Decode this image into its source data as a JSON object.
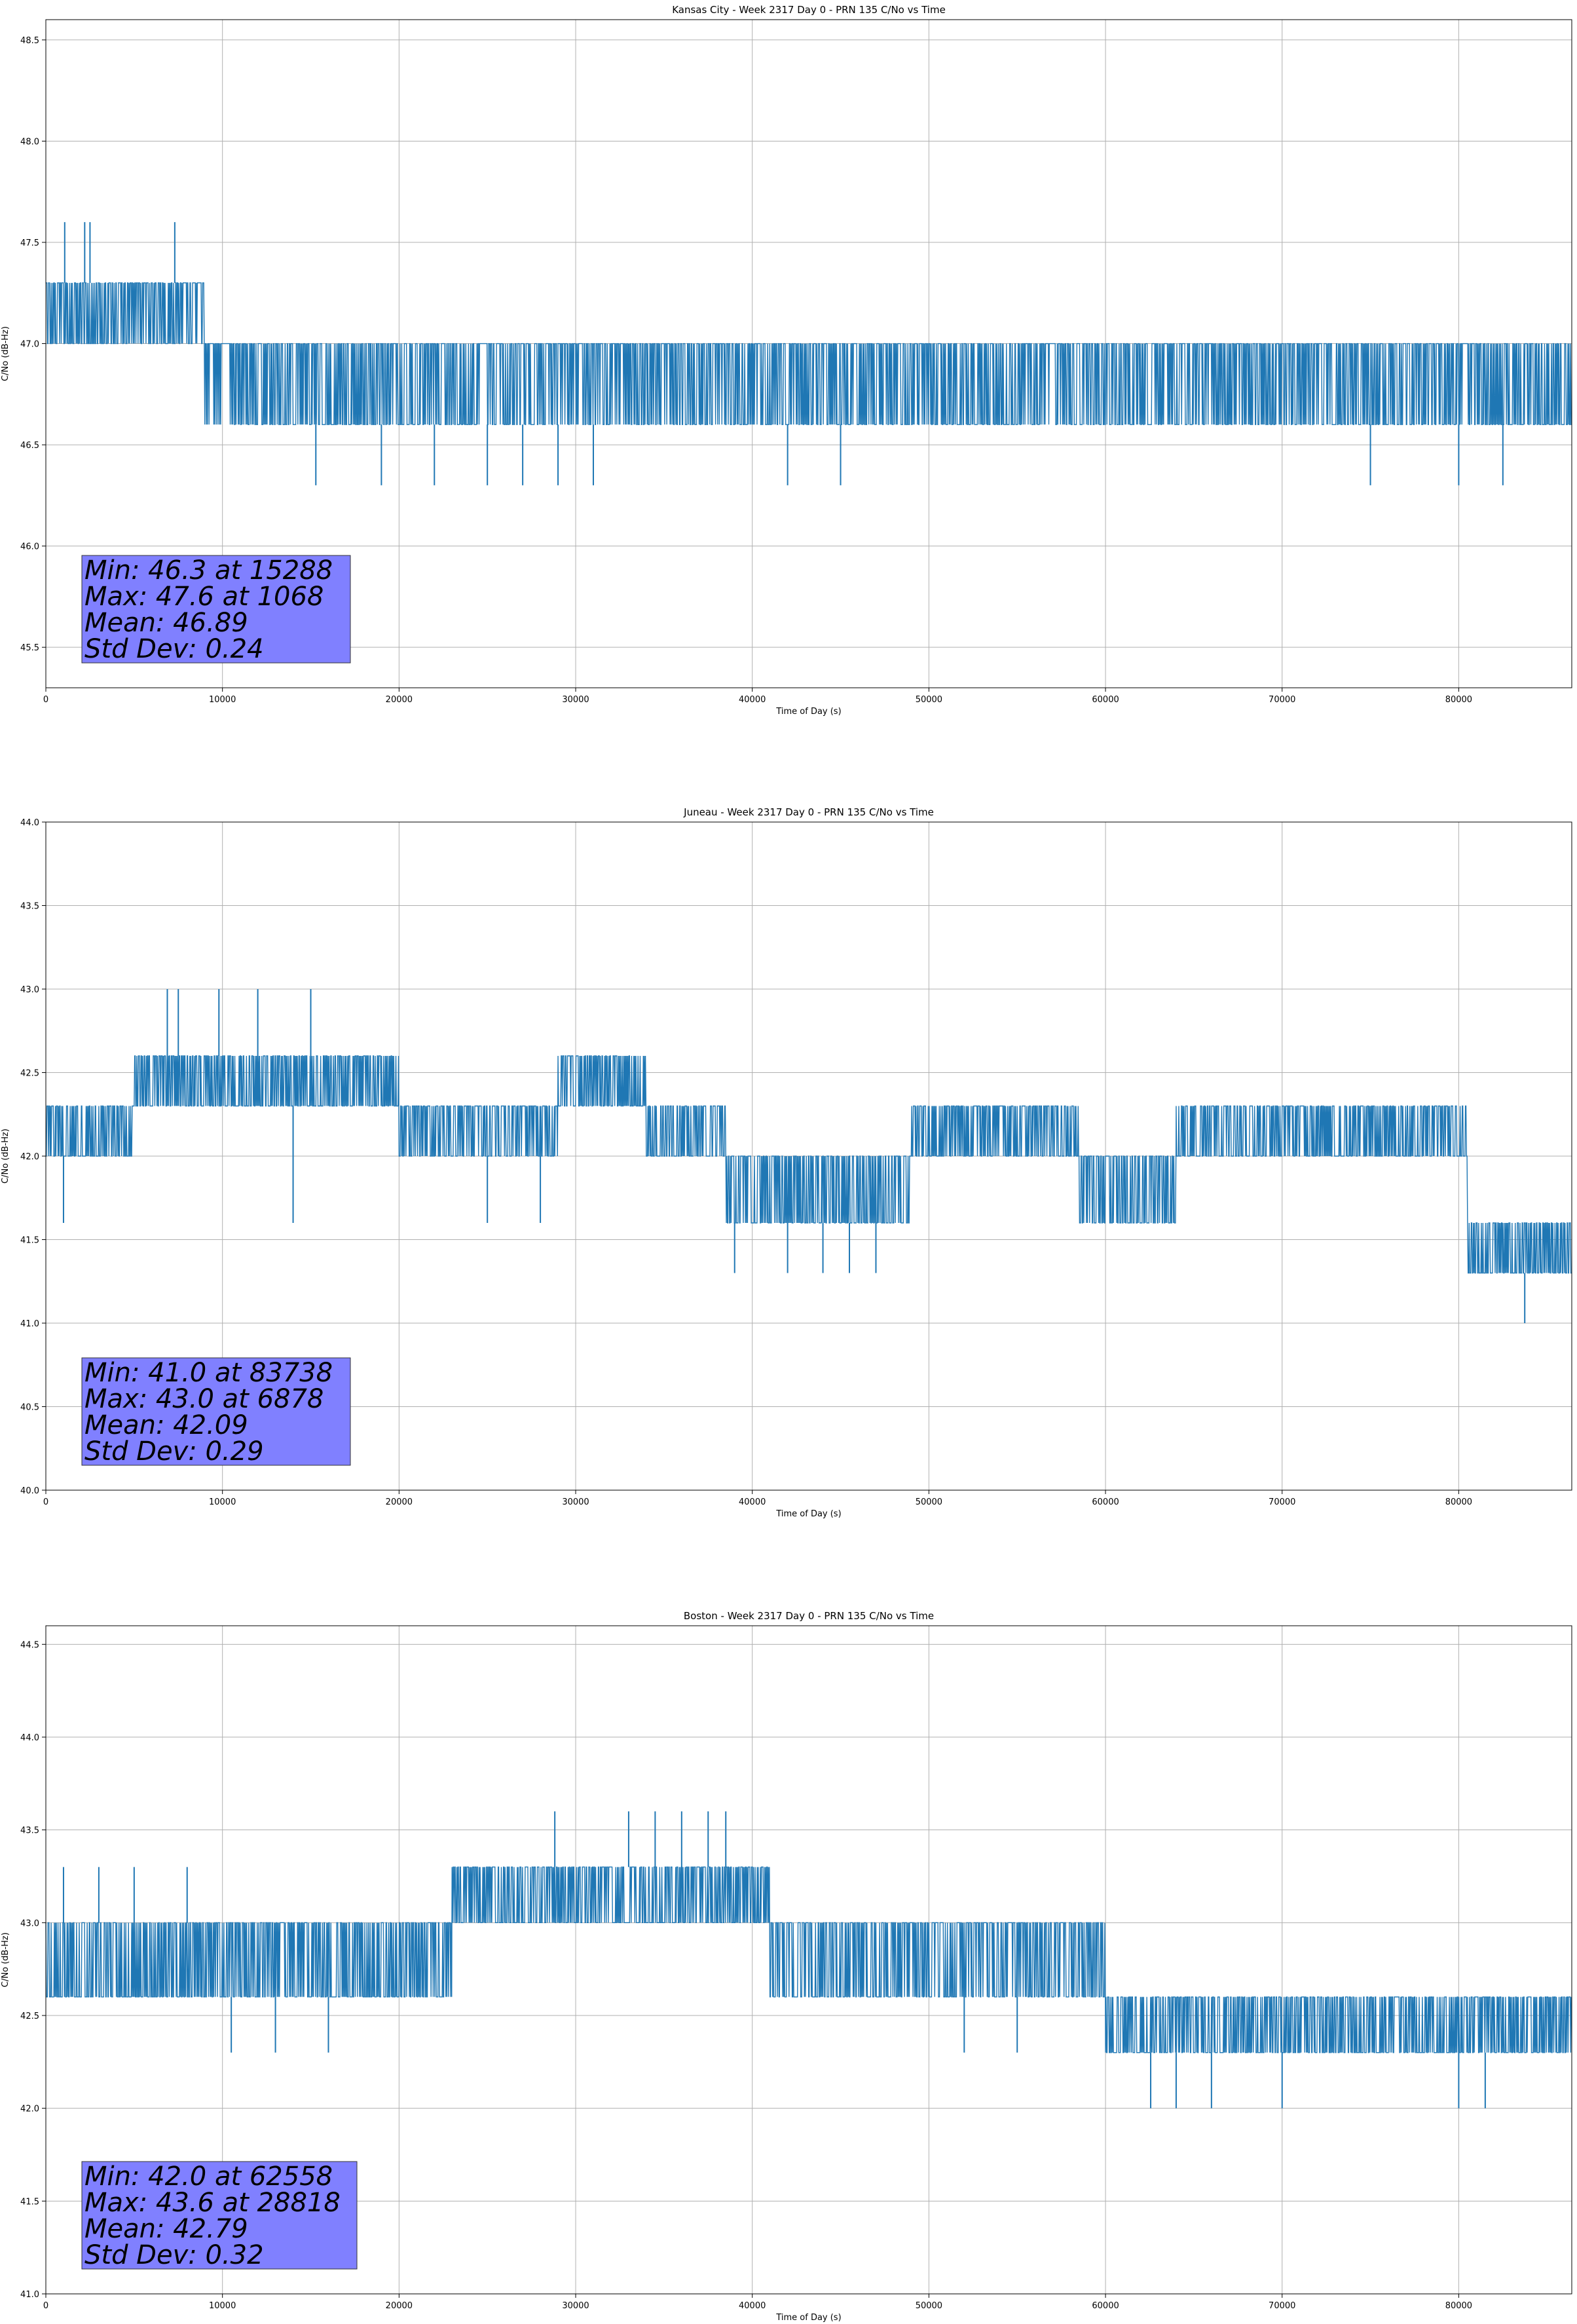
{
  "chart_data": [
    {
      "type": "line",
      "title": "Kansas City - Week 2317 Day 0 - PRN 135 C/No vs Time",
      "xlabel": "Time of Day (s)",
      "ylabel": "C/No (dB-Hz)",
      "xlim": [
        0,
        86400
      ],
      "ylim": [
        45.3,
        48.6
      ],
      "xticks": [
        0,
        10000,
        20000,
        30000,
        40000,
        50000,
        60000,
        70000,
        80000
      ],
      "xtick_labels": [
        "0",
        "10000",
        "20000",
        "30000",
        "40000",
        "50000",
        "60000",
        "70000",
        "80000"
      ],
      "yticks": [
        45.5,
        46.0,
        46.5,
        47.0,
        47.5,
        48.0,
        48.5
      ],
      "ytick_labels": [
        "45.5",
        "46.0",
        "46.5",
        "47.0",
        "47.5",
        "48.0",
        "48.5"
      ],
      "grid": true,
      "series_color": "#1f77b4",
      "quant_step": 0.3,
      "stats": [
        "Min: 46.3 at 15288",
        "Max: 47.6 at 1068",
        "Mean: 46.89",
        "Std Dev: 0.24"
      ],
      "segments": [
        {
          "from": 0,
          "to": 9000,
          "base": 47.0,
          "alt": 47.3,
          "p": 0.55
        },
        {
          "from": 9000,
          "to": 11000,
          "base": 47.0,
          "alt": 46.6,
          "p": 0.4
        },
        {
          "from": 11000,
          "to": 33000,
          "base": 46.6,
          "alt": 47.0,
          "p": 0.55
        },
        {
          "from": 33000,
          "to": 40000,
          "base": 47.0,
          "alt": 46.6,
          "p": 0.45
        },
        {
          "from": 40000,
          "to": 48000,
          "base": 46.6,
          "alt": 47.0,
          "p": 0.55
        },
        {
          "from": 48000,
          "to": 59000,
          "base": 47.0,
          "alt": 46.6,
          "p": 0.45
        },
        {
          "from": 59000,
          "to": 65000,
          "base": 46.6,
          "alt": 47.0,
          "p": 0.55
        },
        {
          "from": 65000,
          "to": 77000,
          "base": 47.0,
          "alt": 46.6,
          "p": 0.45
        },
        {
          "from": 77000,
          "to": 86400,
          "base": 46.6,
          "alt": 47.0,
          "p": 0.5
        }
      ],
      "spikes": [
        {
          "x": 1068,
          "y": 47.6
        },
        {
          "x": 2200,
          "y": 47.6
        },
        {
          "x": 2500,
          "y": 47.6
        },
        {
          "x": 7300,
          "y": 47.6
        },
        {
          "x": 15288,
          "y": 46.3
        },
        {
          "x": 19000,
          "y": 46.3
        },
        {
          "x": 22000,
          "y": 46.3
        },
        {
          "x": 25000,
          "y": 46.3
        },
        {
          "x": 27000,
          "y": 46.3
        },
        {
          "x": 29000,
          "y": 46.3
        },
        {
          "x": 31000,
          "y": 46.3
        },
        {
          "x": 42000,
          "y": 46.3
        },
        {
          "x": 45000,
          "y": 46.3
        },
        {
          "x": 75000,
          "y": 46.3
        },
        {
          "x": 80000,
          "y": 46.3
        },
        {
          "x": 82500,
          "y": 46.3
        }
      ]
    },
    {
      "type": "line",
      "title": "Juneau - Week 2317 Day 0 - PRN 135 C/No vs Time",
      "xlabel": "Time of Day (s)",
      "ylabel": "C/No (dB-Hz)",
      "xlim": [
        0,
        86400
      ],
      "ylim": [
        40.0,
        44.0
      ],
      "xticks": [
        0,
        10000,
        20000,
        30000,
        40000,
        50000,
        60000,
        70000,
        80000
      ],
      "xtick_labels": [
        "0",
        "10000",
        "20000",
        "30000",
        "40000",
        "50000",
        "60000",
        "70000",
        "80000"
      ],
      "yticks": [
        40.0,
        40.5,
        41.0,
        41.5,
        42.0,
        42.5,
        43.0,
        43.5,
        44.0
      ],
      "ytick_labels": [
        "40.0",
        "40.5",
        "41.0",
        "41.5",
        "42.0",
        "42.5",
        "43.0",
        "43.5",
        "44.0"
      ],
      "grid": true,
      "series_color": "#1f77b4",
      "quant_step": 0.3,
      "stats": [
        "Min: 41.0 at 83738",
        "Max: 43.0 at 6878",
        "Mean: 42.09",
        "Std Dev: 0.29"
      ],
      "segments": [
        {
          "from": 0,
          "to": 5000,
          "base": 42.3,
          "alt": 42.0,
          "p": 0.5
        },
        {
          "from": 5000,
          "to": 20000,
          "base": 42.3,
          "alt": 42.6,
          "p": 0.5
        },
        {
          "from": 20000,
          "to": 29000,
          "base": 42.3,
          "alt": 42.0,
          "p": 0.45
        },
        {
          "from": 29000,
          "to": 34000,
          "base": 42.3,
          "alt": 42.6,
          "p": 0.5
        },
        {
          "from": 34000,
          "to": 38500,
          "base": 42.3,
          "alt": 42.0,
          "p": 0.5
        },
        {
          "from": 38500,
          "to": 49000,
          "base": 41.6,
          "alt": 42.0,
          "p": 0.5
        },
        {
          "from": 49000,
          "to": 58500,
          "base": 42.3,
          "alt": 42.0,
          "p": 0.45
        },
        {
          "from": 58500,
          "to": 64000,
          "base": 41.6,
          "alt": 42.0,
          "p": 0.5
        },
        {
          "from": 64000,
          "to": 80500,
          "base": 42.3,
          "alt": 42.0,
          "p": 0.5
        },
        {
          "from": 80500,
          "to": 86400,
          "base": 41.3,
          "alt": 41.6,
          "p": 0.5
        }
      ],
      "spikes": [
        {
          "x": 6878,
          "y": 43.0
        },
        {
          "x": 7500,
          "y": 43.0
        },
        {
          "x": 9800,
          "y": 43.0
        },
        {
          "x": 12000,
          "y": 43.0
        },
        {
          "x": 15000,
          "y": 43.0
        },
        {
          "x": 1000,
          "y": 41.6
        },
        {
          "x": 14000,
          "y": 41.6
        },
        {
          "x": 25000,
          "y": 41.6
        },
        {
          "x": 28000,
          "y": 41.6
        },
        {
          "x": 39000,
          "y": 41.3
        },
        {
          "x": 42000,
          "y": 41.3
        },
        {
          "x": 44000,
          "y": 41.3
        },
        {
          "x": 45500,
          "y": 41.3
        },
        {
          "x": 47000,
          "y": 41.3
        },
        {
          "x": 83738,
          "y": 41.0
        }
      ]
    },
    {
      "type": "line",
      "title": "Boston - Week 2317 Day 0 - PRN 135 C/No vs Time",
      "xlabel": "Time of Day (s)",
      "ylabel": "C/No (dB-Hz)",
      "xlim": [
        0,
        86400
      ],
      "ylim": [
        41.0,
        44.6
      ],
      "xticks": [
        0,
        10000,
        20000,
        30000,
        40000,
        50000,
        60000,
        70000,
        80000
      ],
      "xtick_labels": [
        "0",
        "10000",
        "20000",
        "30000",
        "40000",
        "50000",
        "60000",
        "70000",
        "80000"
      ],
      "yticks": [
        41.0,
        41.5,
        42.0,
        42.5,
        43.0,
        43.5,
        44.0,
        44.5
      ],
      "ytick_labels": [
        "41.0",
        "41.5",
        "42.0",
        "42.5",
        "43.0",
        "43.5",
        "44.0",
        "44.5"
      ],
      "grid": true,
      "series_color": "#1f77b4",
      "quant_step": 0.3,
      "stats": [
        "Min: 42.0 at 62558",
        "Max: 43.6 at 28818",
        "Mean: 42.79",
        "Std Dev: 0.32"
      ],
      "segments": [
        {
          "from": 0,
          "to": 9000,
          "base": 42.6,
          "alt": 43.0,
          "p": 0.45
        },
        {
          "from": 9000,
          "to": 23000,
          "base": 42.6,
          "alt": 43.0,
          "p": 0.5
        },
        {
          "from": 23000,
          "to": 41000,
          "base": 43.0,
          "alt": 43.3,
          "p": 0.5
        },
        {
          "from": 41000,
          "to": 60000,
          "base": 42.6,
          "alt": 43.0,
          "p": 0.5
        },
        {
          "from": 60000,
          "to": 86400,
          "base": 42.3,
          "alt": 42.6,
          "p": 0.5
        }
      ],
      "spikes": [
        {
          "x": 1000,
          "y": 43.3
        },
        {
          "x": 3000,
          "y": 43.3
        },
        {
          "x": 5000,
          "y": 43.3
        },
        {
          "x": 8000,
          "y": 43.3
        },
        {
          "x": 28818,
          "y": 43.6
        },
        {
          "x": 33000,
          "y": 43.6
        },
        {
          "x": 34500,
          "y": 43.6
        },
        {
          "x": 36000,
          "y": 43.6
        },
        {
          "x": 37500,
          "y": 43.6
        },
        {
          "x": 38500,
          "y": 43.6
        },
        {
          "x": 10500,
          "y": 42.3
        },
        {
          "x": 13000,
          "y": 42.3
        },
        {
          "x": 16000,
          "y": 42.3
        },
        {
          "x": 52000,
          "y": 42.3
        },
        {
          "x": 55000,
          "y": 42.3
        },
        {
          "x": 62558,
          "y": 42.0
        },
        {
          "x": 64000,
          "y": 42.0
        },
        {
          "x": 66000,
          "y": 42.0
        },
        {
          "x": 70000,
          "y": 42.0
        },
        {
          "x": 80000,
          "y": 42.0
        },
        {
          "x": 81500,
          "y": 42.0
        }
      ]
    }
  ]
}
